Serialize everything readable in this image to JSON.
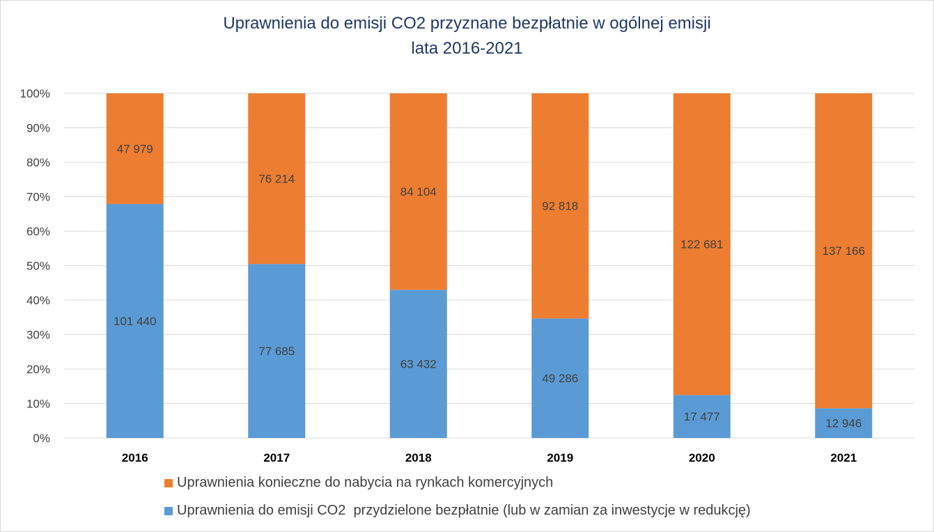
{
  "chart_data": {
    "type": "bar",
    "stacked": "percent",
    "title": "Uprawnienia do emisji CO2 przyznane bezpłatnie w ogólnej emisji",
    "subtitle": "lata 2016-2021",
    "categories": [
      "2016",
      "2017",
      "2018",
      "2019",
      "2020",
      "2021"
    ],
    "series": [
      {
        "name": "Uprawnienia do emisji CO2  przydzielone bezpłatnie (lub w zamian za inwestycje w redukcję)",
        "color": "#5b9bd5",
        "values": [
          101440,
          77685,
          63432,
          49286,
          17477,
          12946
        ],
        "labels": [
          "101 440",
          "77 685",
          "63 432",
          "49 286",
          "17 477",
          "12 946"
        ]
      },
      {
        "name": "Uprawnienia konieczne do nabycia na rynkach komercyjnych",
        "color": "#ed7d31",
        "values": [
          47979,
          76214,
          84104,
          92818,
          122681,
          137166
        ],
        "labels": [
          "47 979",
          "76 214",
          "84 104",
          "92 818",
          "122 681",
          "137 166"
        ]
      }
    ],
    "yaxis_ticks": [
      "0%",
      "10%",
      "20%",
      "30%",
      "40%",
      "50%",
      "60%",
      "70%",
      "80%",
      "90%",
      "100%"
    ],
    "ylim": [
      0,
      100
    ],
    "grid": true,
    "legend_position": "bottom"
  }
}
